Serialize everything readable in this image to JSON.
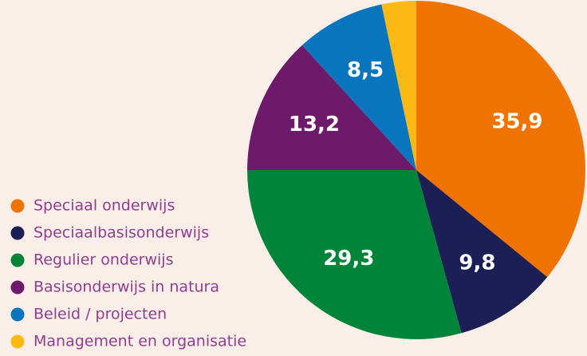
{
  "chart_data": {
    "type": "pie",
    "categories": [
      "Speciaal onderwijs",
      "Speciaalbasisonderwijs",
      "Regulier onderwijs",
      "Basisonderwijs in natura",
      "Beleid / projecten",
      "Management en organisatie"
    ],
    "values": [
      35.9,
      9.8,
      29.3,
      13.2,
      8.5,
      3.3
    ],
    "value_labels": [
      "35,9",
      "9,8",
      "29,3",
      "13,2",
      "8,5",
      null
    ],
    "colors": [
      "#f07300",
      "#1c1f55",
      "#00843a",
      "#6e1a6b",
      "#0a75bf",
      "#fdb913"
    ],
    "legend": "bottom-left"
  }
}
